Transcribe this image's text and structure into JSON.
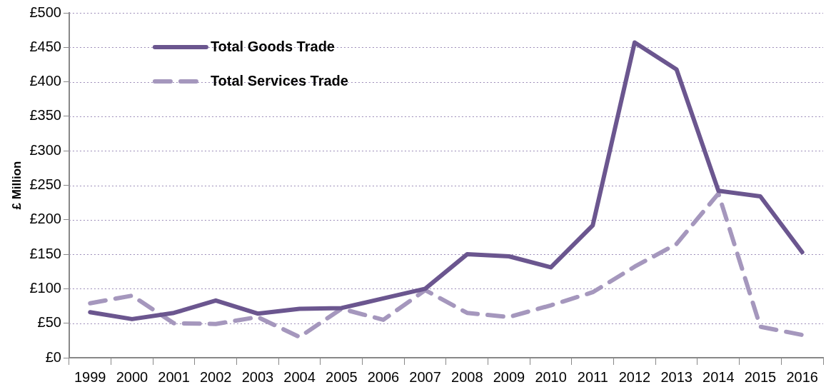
{
  "chart_data": {
    "type": "line",
    "ylabel": "£ Million",
    "categories": [
      "1999",
      "2000",
      "2001",
      "2002",
      "2003",
      "2004",
      "2005",
      "2006",
      "2007",
      "2008",
      "2009",
      "2010",
      "2011",
      "2012",
      "2013",
      "2014",
      "2015",
      "2016"
    ],
    "series": [
      {
        "name": "Total Goods Trade",
        "color": "#6b568f",
        "line_style": "solid",
        "values": [
          66,
          56,
          65,
          83,
          64,
          71,
          72,
          86,
          100,
          150,
          147,
          131,
          192,
          457,
          418,
          242,
          234,
          153
        ]
      },
      {
        "name": "Total Services Trade",
        "color": "#a597bd",
        "line_style": "dashed",
        "values": [
          79,
          90,
          50,
          49,
          59,
          30,
          71,
          55,
          98,
          65,
          59,
          76,
          95,
          132,
          165,
          238,
          45,
          33
        ]
      }
    ],
    "ylim": [
      0,
      500
    ],
    "yticks": [
      {
        "value": 0,
        "label": "£0"
      },
      {
        "value": 50,
        "label": "£50"
      },
      {
        "value": 100,
        "label": "£100"
      },
      {
        "value": 150,
        "label": "£150"
      },
      {
        "value": 200,
        "label": "£200"
      },
      {
        "value": 250,
        "label": "£250"
      },
      {
        "value": 300,
        "label": "£300"
      },
      {
        "value": 350,
        "label": "£350"
      },
      {
        "value": 400,
        "label": "£400"
      },
      {
        "value": 450,
        "label": "£450"
      },
      {
        "value": 500,
        "label": "£500"
      }
    ],
    "grid": "y",
    "legend": "top left",
    "marker": "none"
  }
}
